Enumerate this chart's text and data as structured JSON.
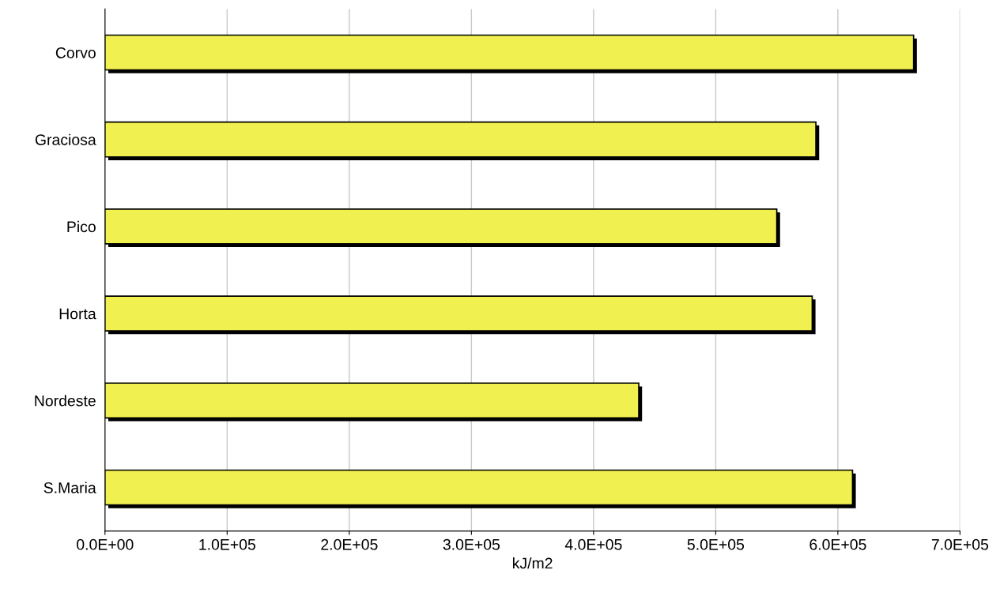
{
  "chart_data": {
    "type": "bar",
    "orientation": "horizontal",
    "xlabel": "kJ/m2",
    "categories": [
      "Corvo",
      "Graciosa",
      "Pico",
      "Horta",
      "Nordeste",
      "S.Maria"
    ],
    "values": [
      662000,
      582000,
      550000,
      579000,
      437000,
      612000
    ],
    "color": "#f0f050",
    "xlim": [
      0,
      700000
    ],
    "xticks": [
      {
        "value": 0,
        "label": "0.0E+00"
      },
      {
        "value": 100000,
        "label": "1.0E+05"
      },
      {
        "value": 200000,
        "label": "2.0E+05"
      },
      {
        "value": 300000,
        "label": "3.0E+05"
      },
      {
        "value": 400000,
        "label": "4.0E+05"
      },
      {
        "value": 500000,
        "label": "5.0E+05"
      },
      {
        "value": 600000,
        "label": "6.0E+05"
      },
      {
        "value": 700000,
        "label": "7.0E+05"
      }
    ],
    "grid": "x"
  }
}
